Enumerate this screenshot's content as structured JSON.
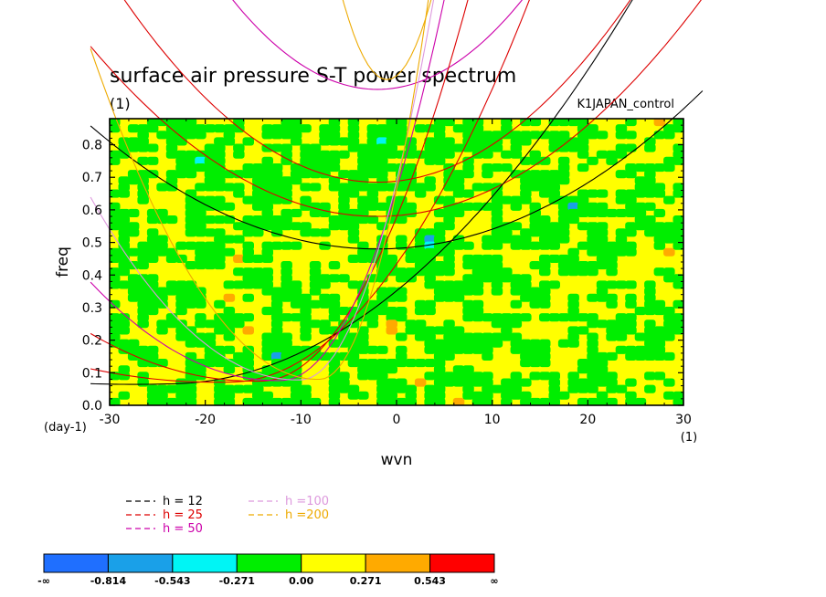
{
  "chart_data": {
    "type": "heatmap",
    "title": "surface air pressure S-T power spectrum",
    "subtitle": "(1)",
    "run_label": "K1JAPAN_control",
    "xlabel": "wvn",
    "ylabel": "freq",
    "x_unit": "(1)",
    "y_unit": "(day-1)",
    "xlim": [
      -30,
      30
    ],
    "ylim": [
      0,
      0.88
    ],
    "x_ticks": [
      {
        "value": -30,
        "label": "-30"
      },
      {
        "value": -20,
        "label": "-20"
      },
      {
        "value": -10,
        "label": "-10"
      },
      {
        "value": 0,
        "label": "0"
      },
      {
        "value": 10,
        "label": "10"
      },
      {
        "value": 20,
        "label": "20"
      },
      {
        "value": 30,
        "label": "30"
      }
    ],
    "y_ticks": [
      {
        "value": 0.0,
        "label": "0.0"
      },
      {
        "value": 0.1,
        "label": "0.1"
      },
      {
        "value": 0.2,
        "label": "0.2"
      },
      {
        "value": 0.3,
        "label": "0.3"
      },
      {
        "value": 0.4,
        "label": "0.4"
      },
      {
        "value": 0.5,
        "label": "0.5"
      },
      {
        "value": 0.6,
        "label": "0.6"
      },
      {
        "value": 0.7,
        "label": "0.7"
      },
      {
        "value": 0.8,
        "label": "0.8"
      }
    ],
    "color_levels": [
      {
        "color": "#1f6fff"
      },
      {
        "color": "#1aa0e8"
      },
      {
        "color": "#00f5f5"
      },
      {
        "color": "#00ee00"
      },
      {
        "color": "#ffff00"
      },
      {
        "color": "#ffaa00"
      },
      {
        "color": "#ff0000"
      }
    ],
    "colorbar_labels": [
      "-∞",
      "-0.814",
      "-0.543",
      "-0.271",
      "0.00",
      "0.271",
      "0.543",
      "∞"
    ],
    "dispersion_legend": [
      {
        "label": "h = 12",
        "color": "#000000"
      },
      {
        "label": "h = 25",
        "color": "#dd0000"
      },
      {
        "label": "h = 50",
        "color": "#cc00aa"
      },
      {
        "label": "h =100",
        "color": "#dd99dd"
      },
      {
        "label": "h =200",
        "color": "#eeaa00"
      }
    ]
  }
}
